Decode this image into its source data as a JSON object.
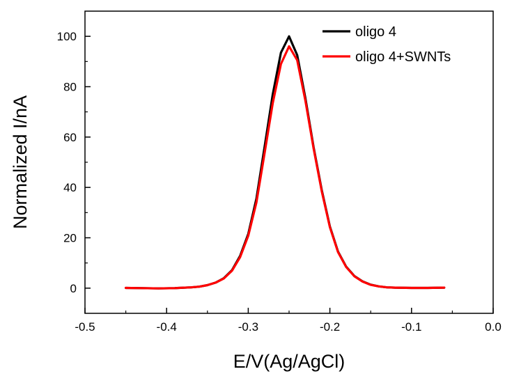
{
  "chart_data": {
    "type": "line",
    "title": "",
    "xlabel": "E/V(Ag/AgCl)",
    "ylabel": "Normalized I/nA",
    "xlim": [
      -0.5,
      0.0
    ],
    "ylim": [
      -10,
      110
    ],
    "xticks": [
      -0.5,
      -0.4,
      -0.3,
      -0.2,
      -0.1,
      0.0
    ],
    "xtick_labels": [
      "-0.5",
      "-0.4",
      "-0.3",
      "-0.2",
      "-0.1",
      "0.0"
    ],
    "yticks": [
      0,
      20,
      40,
      60,
      80,
      100
    ],
    "ytick_labels": [
      "0",
      "20",
      "40",
      "60",
      "80",
      "100"
    ],
    "grid": false,
    "legend_position": "top-right",
    "series": [
      {
        "name": "oligo 4",
        "color": "#000000",
        "x": [
          -0.45,
          -0.43,
          -0.41,
          -0.39,
          -0.37,
          -0.36,
          -0.35,
          -0.34,
          -0.33,
          -0.32,
          -0.31,
          -0.3,
          -0.29,
          -0.28,
          -0.27,
          -0.26,
          -0.25,
          -0.24,
          -0.23,
          -0.22,
          -0.21,
          -0.2,
          -0.19,
          -0.18,
          -0.17,
          -0.16,
          -0.15,
          -0.14,
          -0.13,
          -0.12,
          -0.1,
          -0.08,
          -0.06
        ],
        "y": [
          0.1,
          0.0,
          -0.1,
          0.0,
          0.3,
          0.6,
          1.2,
          2.2,
          3.9,
          7.1,
          12.8,
          21.5,
          35.5,
          56.0,
          77.0,
          93.5,
          100.0,
          92.5,
          75.5,
          56.0,
          39.0,
          24.5,
          14.5,
          8.5,
          4.8,
          2.7,
          1.4,
          0.7,
          0.3,
          0.2,
          0.1,
          0.1,
          0.2
        ]
      },
      {
        "name": "oligo 4+SWNTs",
        "color": "#ff0000",
        "x": [
          -0.45,
          -0.43,
          -0.41,
          -0.39,
          -0.37,
          -0.36,
          -0.35,
          -0.34,
          -0.33,
          -0.32,
          -0.31,
          -0.3,
          -0.29,
          -0.28,
          -0.27,
          -0.26,
          -0.25,
          -0.24,
          -0.23,
          -0.22,
          -0.21,
          -0.2,
          -0.19,
          -0.18,
          -0.17,
          -0.16,
          -0.15,
          -0.14,
          -0.13,
          -0.12,
          -0.1,
          -0.08,
          -0.06
        ],
        "y": [
          0.1,
          0.0,
          -0.1,
          0.0,
          0.3,
          0.6,
          1.2,
          2.2,
          3.8,
          6.9,
          12.3,
          20.8,
          34.0,
          53.5,
          73.5,
          89.0,
          96.0,
          90.5,
          74.5,
          55.5,
          38.5,
          24.2,
          14.3,
          8.4,
          4.7,
          2.6,
          1.3,
          0.7,
          0.3,
          0.2,
          0.1,
          0.1,
          0.2
        ]
      }
    ]
  }
}
